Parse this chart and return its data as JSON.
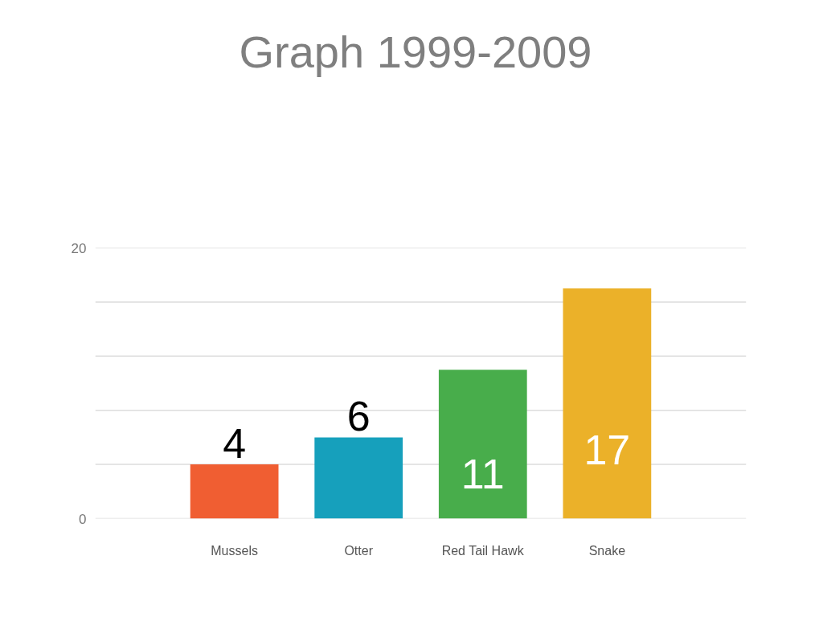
{
  "chart_data": {
    "type": "bar",
    "title": "Graph 1999-2009",
    "categories": [
      "Mussels",
      "Otter",
      "Red Tail Hawk",
      "Snake"
    ],
    "values": [
      4,
      6,
      11,
      17
    ],
    "colors": [
      "#f05e32",
      "#16a0bc",
      "#48ad4b",
      "#ebb129"
    ],
    "ylim": [
      0,
      20
    ],
    "yticks": [
      0,
      {
        "value": 4,
        "label": null
      },
      {
        "value": 8,
        "label": null
      },
      {
        "value": 12,
        "label": null
      },
      {
        "value": 16,
        "label": null
      },
      20
    ],
    "grid": "y",
    "data_labels": true
  }
}
